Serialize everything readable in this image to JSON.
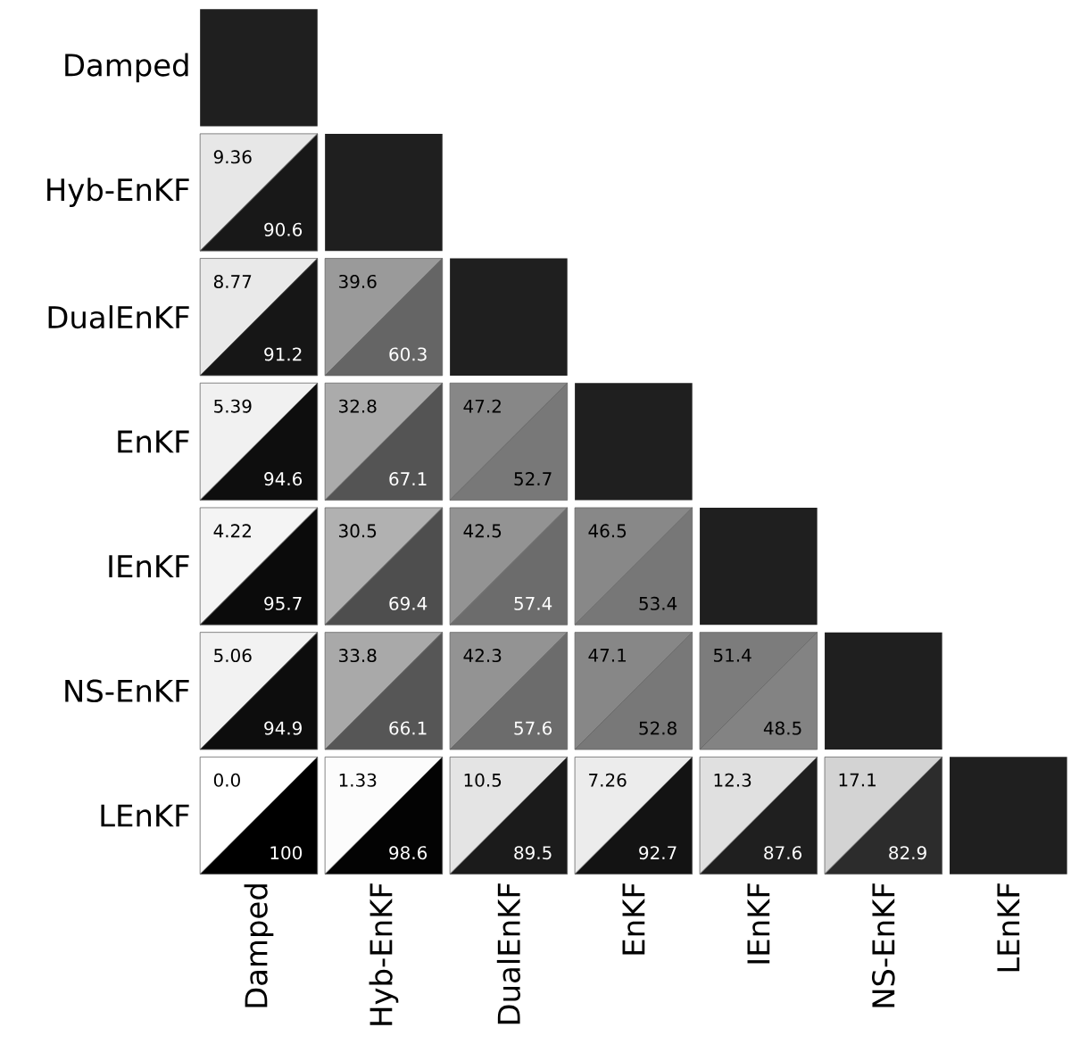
{
  "chart_data": {
    "type": "heatmap",
    "categories": [
      "Damped",
      "Hyb-EnKF",
      "DualEnKF",
      "EnKF",
      "IEnKF",
      "NS-EnKF",
      "LEnKF"
    ],
    "y_categories": [
      "Damped",
      "Hyb-EnKF",
      "DualEnKF",
      "EnKF",
      "IEnKF",
      "NS-EnKF",
      "LEnKF"
    ],
    "cells": [
      [
        null,
        null,
        null,
        null,
        null,
        null,
        null
      ],
      [
        9.36,
        null,
        null,
        null,
        null,
        null,
        null
      ],
      [
        8.77,
        39.6,
        null,
        null,
        null,
        null,
        null
      ],
      [
        5.39,
        32.8,
        47.2,
        null,
        null,
        null,
        null
      ],
      [
        4.22,
        30.5,
        42.5,
        46.5,
        null,
        null,
        null
      ],
      [
        5.06,
        33.8,
        42.3,
        47.1,
        51.4,
        null,
        null
      ],
      [
        0.0,
        1.33,
        10.5,
        7.26,
        12.3,
        17.1,
        null
      ]
    ],
    "cell_labels": [
      [
        null,
        null,
        null,
        null,
        null,
        null,
        null
      ],
      [
        "9.36",
        null,
        null,
        null,
        null,
        null,
        null
      ],
      [
        "8.77",
        "39.6",
        null,
        null,
        null,
        null,
        null
      ],
      [
        "5.39",
        "32.8",
        "47.2",
        null,
        null,
        null,
        null
      ],
      [
        "4.22",
        "30.5",
        "42.5",
        "46.5",
        null,
        null,
        null
      ],
      [
        "5.06",
        "33.8",
        "42.3",
        "47.1",
        "51.4",
        null,
        null
      ],
      [
        "0.0",
        "1.33",
        "10.5",
        "7.26",
        "12.3",
        "17.1",
        null
      ]
    ],
    "annotations": [
      "90.6",
      "91.2",
      "60.3",
      "94.6",
      "67.1",
      "52.7",
      "95.7",
      "69.4",
      "57.4",
      "53.4",
      "94.9",
      "66.1",
      "57.6",
      "52.8",
      "48.5",
      "100",
      "98.6",
      "89.5",
      "92.7",
      "87.6",
      "82.9"
    ]
  }
}
